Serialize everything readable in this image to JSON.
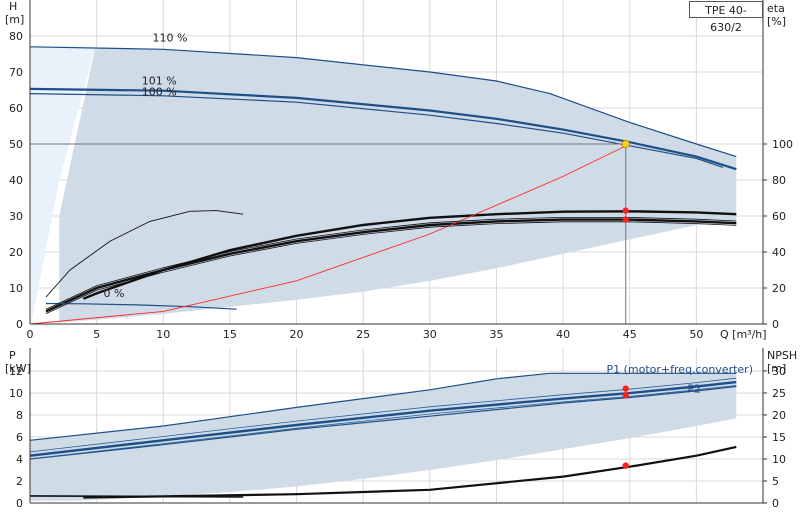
{
  "title": "TPE 40-630/2",
  "chart_data": [
    {
      "type": "line",
      "title": "TPE 40-630/2",
      "xlabel": "Q [m³/h]",
      "ylabel": "H [m]",
      "ylabel_unit_line1": "H",
      "ylabel_unit_line2": "[m]",
      "y2label_line1": "eta",
      "y2label_line2": "[%]",
      "xlim": [
        0,
        55
      ],
      "ylim": [
        0,
        90
      ],
      "y2lim": [
        0,
        180
      ],
      "x_ticks": [
        0,
        5,
        10,
        15,
        20,
        25,
        30,
        35,
        40,
        45,
        50
      ],
      "y_ticks": [
        0,
        10,
        20,
        30,
        40,
        50,
        60,
        70,
        80
      ],
      "y2_ticks": [
        0,
        20,
        40,
        60,
        80,
        100
      ],
      "grid": true,
      "series": [
        {
          "name": "110 %",
          "x": [
            0,
            10,
            20,
            30,
            35,
            39,
            45,
            50,
            53
          ],
          "y": [
            77,
            76.3,
            74,
            70,
            67.5,
            64,
            56,
            50,
            46.5
          ]
        },
        {
          "name": "101 %",
          "x": [
            0,
            10,
            20,
            30,
            35,
            40,
            45,
            50,
            53
          ],
          "y": [
            65.3,
            64.8,
            62.8,
            59.3,
            57,
            54,
            50.5,
            46.5,
            43
          ]
        },
        {
          "name": "100 %",
          "x": [
            0,
            10,
            20,
            30,
            35,
            40,
            45,
            50,
            52
          ],
          "y": [
            64,
            63.4,
            61.6,
            58,
            55.7,
            53,
            49.5,
            46,
            43.5
          ]
        },
        {
          "name": "",
          "x": [
            1.2,
            5,
            10,
            15,
            20,
            25,
            30,
            35,
            40,
            45,
            50,
            53
          ],
          "y": [
            3.5,
            10,
            15,
            19.5,
            23,
            25.5,
            27.5,
            28.5,
            29,
            29,
            28.5,
            28
          ]
        },
        {
          "name": "",
          "x": [
            4,
            5,
            10,
            15,
            20,
            25,
            30,
            35,
            40,
            45,
            50,
            53
          ],
          "y": [
            7,
            8.5,
            15,
            20.5,
            24.5,
            27.5,
            29.5,
            30.5,
            31.2,
            31.3,
            31,
            30.5
          ]
        },
        {
          "name": "",
          "x": [
            1.2,
            3,
            6,
            9,
            12,
            14,
            16
          ],
          "y": [
            7.5,
            15,
            23,
            28.5,
            31.3,
            31.5,
            30.5
          ]
        },
        {
          "name": "",
          "x": [
            1.2,
            4,
            8,
            12,
            15.5
          ],
          "y": [
            5.7,
            5.6,
            5.3,
            4.8,
            4.1
          ]
        },
        {
          "name": "",
          "x": [
            0,
            10,
            20,
            30,
            40,
            45
          ],
          "y": [
            0,
            3.5,
            12,
            25,
            41,
            50
          ]
        }
      ],
      "labels": [
        "110 %",
        "101 %",
        "100 %",
        "0 %"
      ],
      "duty_point": {
        "x": 44.7,
        "y": 50
      },
      "eta_points": [
        {
          "x": 44.7,
          "y": 31.5
        },
        {
          "x": 44.7,
          "y": 29
        }
      ]
    },
    {
      "type": "line",
      "ylabel_line1": "P",
      "ylabel_line2": "[kW]",
      "y2label_line1": "NPSH",
      "y2label_line2": "[m]",
      "xlim": [
        0,
        55
      ],
      "ylim": [
        0,
        14.1
      ],
      "y2lim": [
        0,
        35.2
      ],
      "y_ticks": [
        0,
        2,
        4,
        6,
        8,
        10,
        12
      ],
      "y2_ticks": [
        0,
        5,
        10,
        15,
        20,
        25,
        30
      ],
      "grid": true,
      "series": [
        {
          "name": "P1 (motor+freq.converter)",
          "x": [
            0,
            10,
            20,
            30,
            35,
            39,
            45,
            50,
            53
          ],
          "y": [
            5.7,
            7,
            8.7,
            10.3,
            11.3,
            11.8,
            11.8,
            11.8,
            11.8
          ]
        },
        {
          "name": "P2",
          "x": [
            0,
            10,
            20,
            30,
            40,
            45,
            50,
            53
          ],
          "y": [
            4.3,
            5.7,
            7.1,
            8.4,
            9.5,
            10,
            10.6,
            11
          ]
        },
        {
          "name": "",
          "x": [
            0,
            10,
            20,
            30,
            40,
            45,
            50,
            53
          ],
          "y": [
            4,
            5.3,
            6.7,
            7.9,
            9.1,
            9.6,
            10.2,
            10.6
          ]
        },
        {
          "name": "",
          "x": [
            4,
            10,
            20,
            30,
            40,
            45,
            50,
            53
          ],
          "y": [
            0.5,
            0.6,
            0.8,
            1.2,
            2.4,
            3.3,
            4.3,
            5.1
          ]
        },
        {
          "name": "",
          "x": [
            0,
            8,
            16
          ],
          "y": [
            0.65,
            0.6,
            0.55
          ]
        }
      ],
      "labels": [
        "P1 (motor+freq.converter)",
        "P2"
      ],
      "points": [
        {
          "x": 44.7,
          "y": 10.4
        },
        {
          "x": 44.7,
          "y": 9.8
        },
        {
          "x": 44.7,
          "y": 3.4
        }
      ]
    }
  ]
}
